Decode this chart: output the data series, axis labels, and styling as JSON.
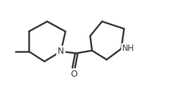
{
  "background_color": "#ffffff",
  "line_color": "#3a3a3a",
  "line_width": 1.8,
  "text_color": "#3a3a3a",
  "font_size": 9,
  "nh_font_size": 8.5,
  "N_label": "N",
  "NH_label": "NH",
  "O_label": "O",
  "fig_width": 2.62,
  "fig_height": 1.32,
  "dpi": 100,
  "xlim": [
    0,
    10
  ],
  "ylim": [
    0,
    5
  ]
}
